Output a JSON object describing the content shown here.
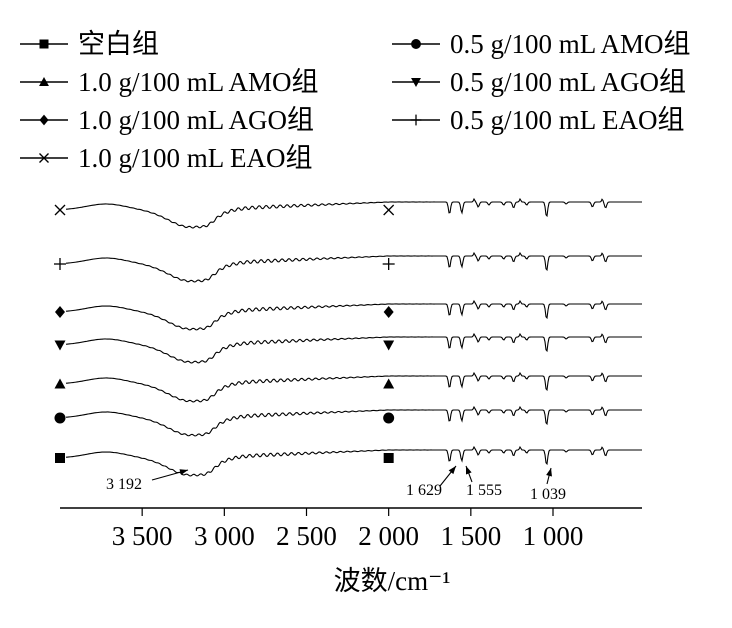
{
  "chart_data": {
    "type": "line",
    "title": "",
    "xlabel": "波数/cm⁻¹",
    "ylabel": "",
    "xlim": [
      4000,
      600
    ],
    "x_reversed": true,
    "x_ticks": [
      {
        "value": 3500,
        "label": "3 500"
      },
      {
        "value": 3000,
        "label": "3 000"
      },
      {
        "value": 2500,
        "label": "2 500"
      },
      {
        "value": 2000,
        "label": "2 000"
      },
      {
        "value": 1500,
        "label": "1 500"
      },
      {
        "value": 1000,
        "label": "1 000"
      }
    ],
    "legend_placement": "top",
    "series": [
      {
        "name": "空白组",
        "marker": "square"
      },
      {
        "name": "0.5 g/100 mL AMO组",
        "marker": "circle"
      },
      {
        "name": "1.0 g/100 mL AMO组",
        "marker": "triangle-up"
      },
      {
        "name": "0.5 g/100 mL AGO组",
        "marker": "triangle-down"
      },
      {
        "name": "1.0 g/100 mL AGO组",
        "marker": "diamond"
      },
      {
        "name": "0.5 g/100 mL EAO组",
        "marker": "plus"
      },
      {
        "name": "1.0 g/100 mL EAO组",
        "marker": "cross"
      }
    ],
    "annotations": [
      {
        "label": "3 192",
        "x": 3192
      },
      {
        "label": "1 629",
        "x": 1629
      },
      {
        "label": "1 555",
        "x": 1555
      },
      {
        "label": "1 039",
        "x": 1039
      }
    ]
  }
}
